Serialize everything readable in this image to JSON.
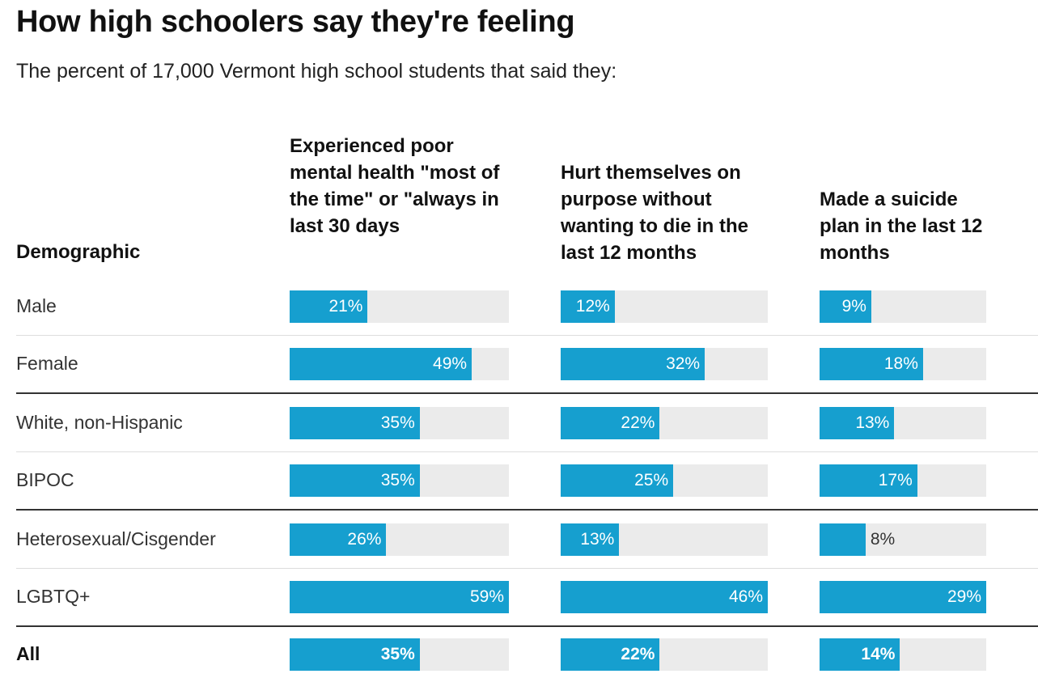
{
  "chart_data": {
    "type": "bar",
    "title": "How high schoolers say they're feeling",
    "subtitle": "The percent of 17,000 Vermont high school students that said they:",
    "row_header": "Demographic",
    "columns": [
      "Experienced poor mental health \"most of the time\" or \"always in last 30 days",
      "Hurt themselves on purpose without wanting to die in the last 12 months",
      "Made a suicide plan in the last 12 months"
    ],
    "categories": [
      "Male",
      "Female",
      "White, non-Hispanic",
      "BIPOC",
      "Heterosexual/Cisgender",
      "LGBTQ+",
      "All"
    ],
    "series": [
      {
        "values": [
          21,
          49,
          35,
          35,
          26,
          59,
          35
        ],
        "labels": [
          "21%",
          "49%",
          "35%",
          "35%",
          "26%",
          "59%",
          "35%"
        ]
      },
      {
        "values": [
          12,
          32,
          22,
          25,
          13,
          46,
          22
        ],
        "labels": [
          "12%",
          "32%",
          "22%",
          "25%",
          "13%",
          "46%",
          "22%"
        ]
      },
      {
        "values": [
          9,
          18,
          13,
          17,
          8,
          29,
          14
        ],
        "labels": [
          "9%",
          "18%",
          "13%",
          "17%",
          "8%",
          "29%",
          "14%"
        ]
      }
    ],
    "column_max": [
      59,
      46,
      29
    ],
    "bar_color": "#169fcf",
    "track_color": "#ebebeb"
  }
}
